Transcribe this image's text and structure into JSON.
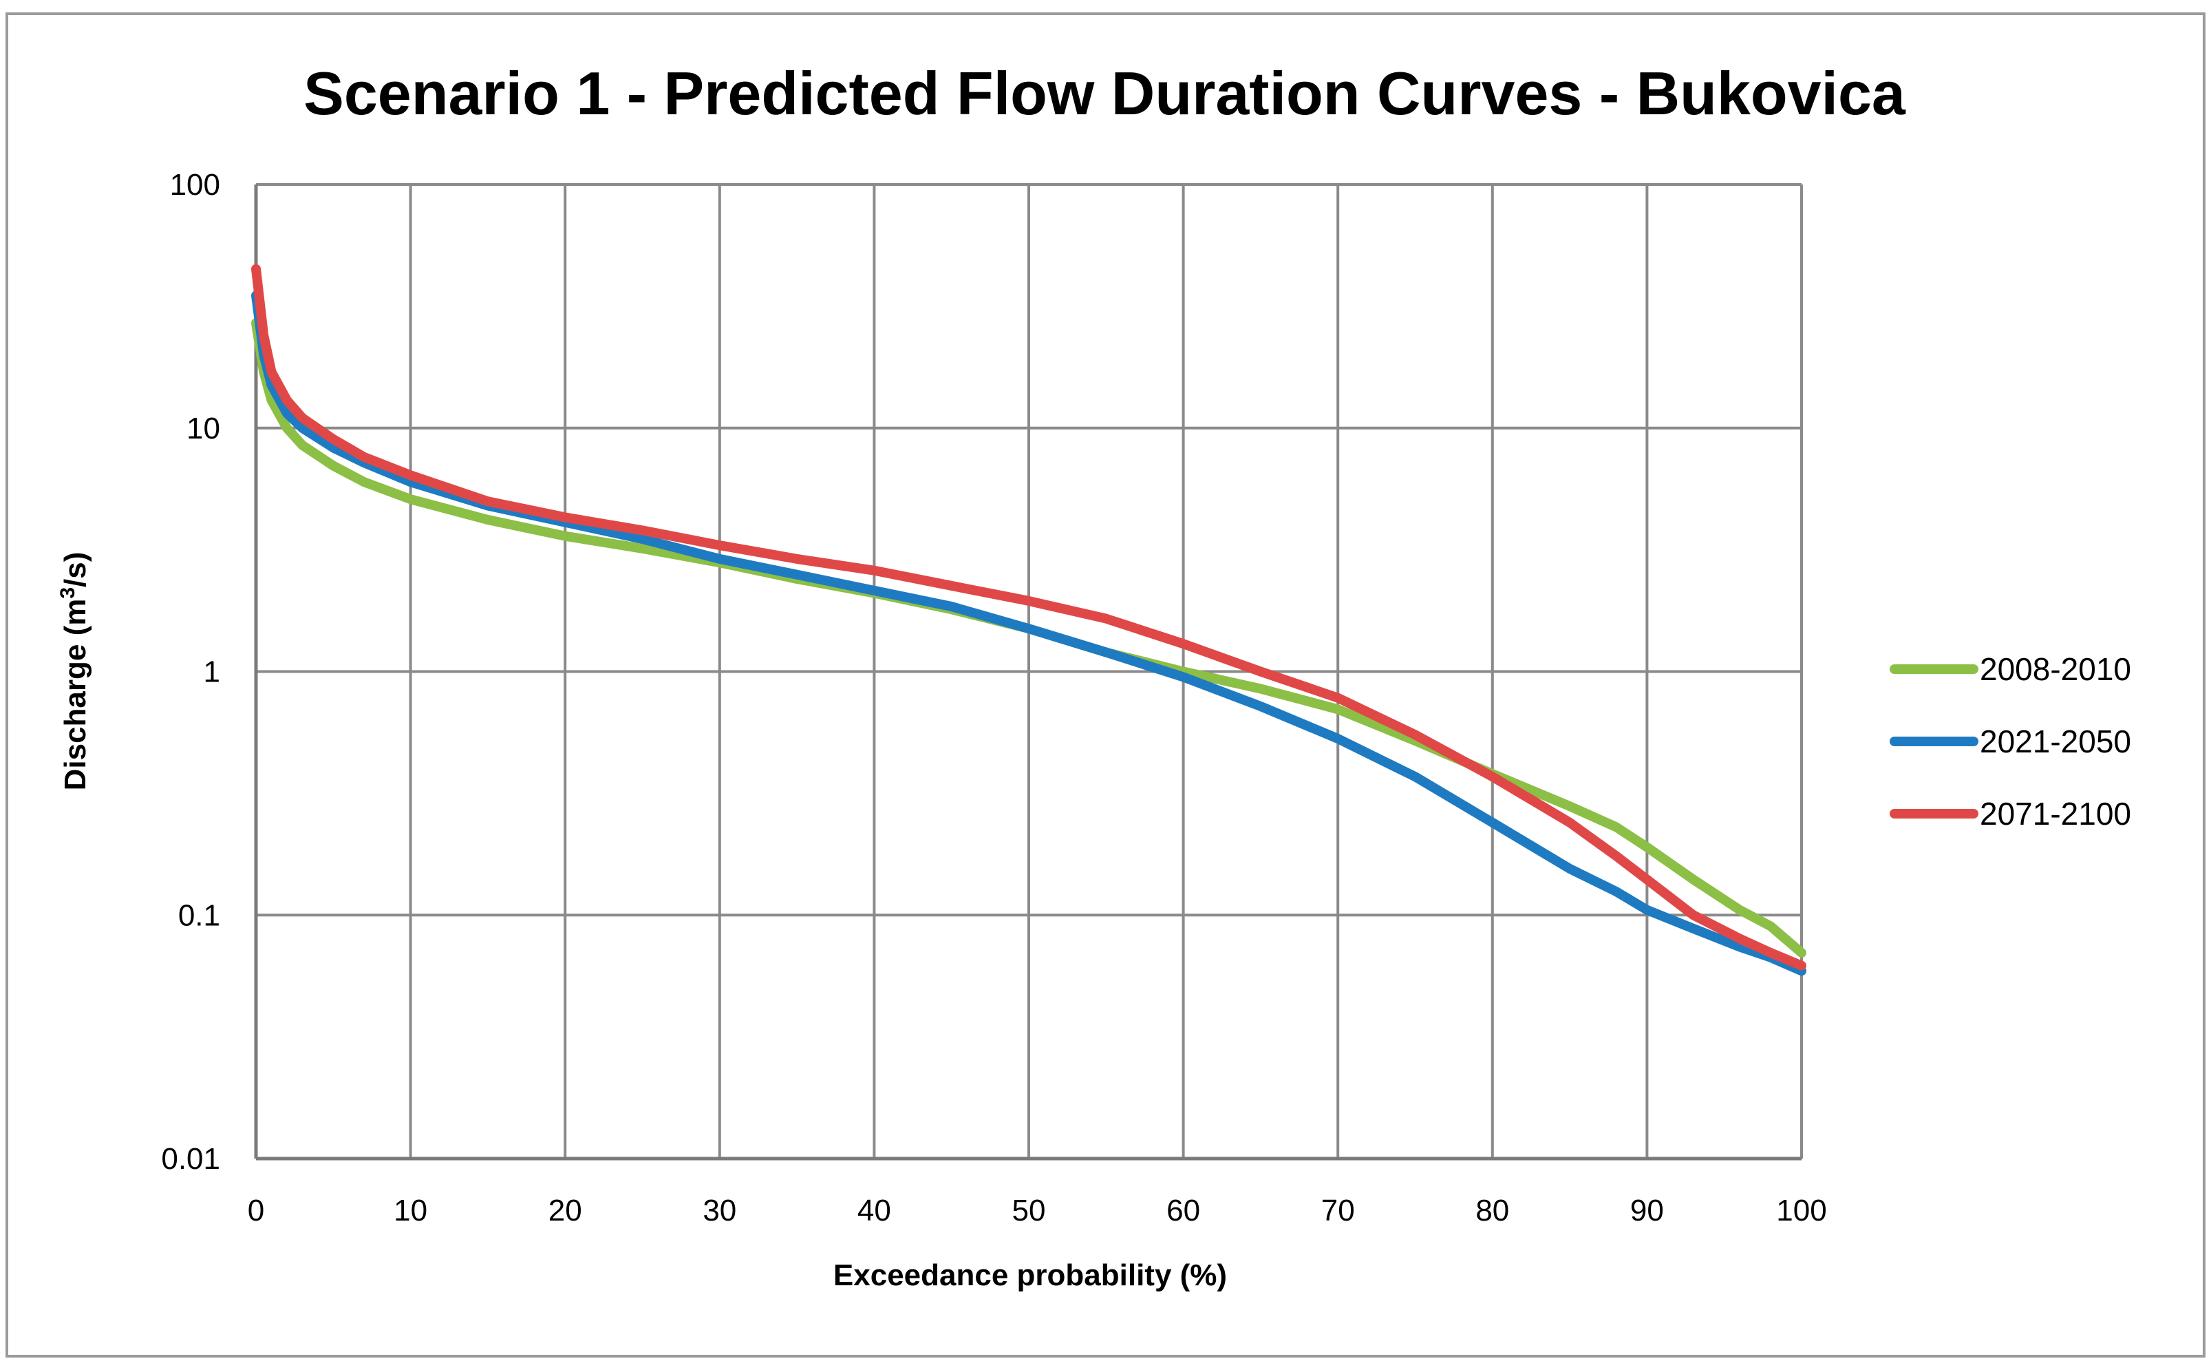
{
  "chart_data": {
    "type": "line",
    "title": "Scenario 1 - Predicted Flow Duration Curves - Bukovica",
    "xlabel": "Exceedance probability (%)",
    "ylabel_prefix": "Discharge (m",
    "ylabel_sup": "3",
    "ylabel_suffix": "/s)",
    "xlim": [
      0,
      100
    ],
    "ylim": [
      0.01,
      100
    ],
    "yscale": "log",
    "grid": true,
    "legend_position": "right",
    "x_ticks": [
      "0",
      "10",
      "20",
      "30",
      "40",
      "50",
      "60",
      "70",
      "80",
      "90",
      "100"
    ],
    "y_ticks": [
      {
        "value": 100,
        "label": "100"
      },
      {
        "value": 10,
        "label": "10"
      },
      {
        "value": 1,
        "label": "1"
      },
      {
        "value": 0.1,
        "label": "0.1"
      },
      {
        "value": 0.01,
        "label": "0.01"
      }
    ],
    "series": [
      {
        "name": "2008-2010",
        "color": "#8cbf45",
        "x": [
          0,
          0.5,
          1,
          2,
          3,
          5,
          7,
          10,
          15,
          20,
          25,
          30,
          35,
          40,
          45,
          50,
          55,
          60,
          65,
          70,
          75,
          80,
          85,
          88,
          90,
          93,
          96,
          98,
          100
        ],
        "y": [
          27,
          17,
          13,
          10,
          8.5,
          7,
          6,
          5.1,
          4.2,
          3.6,
          3.2,
          2.8,
          2.4,
          2.1,
          1.8,
          1.5,
          1.2,
          1.0,
          0.85,
          0.7,
          0.52,
          0.38,
          0.28,
          0.23,
          0.19,
          0.14,
          0.105,
          0.09,
          0.07
        ]
      },
      {
        "name": "2021-2050",
        "color": "#1f7bc1",
        "x": [
          0,
          0.5,
          1,
          2,
          3,
          5,
          7,
          10,
          15,
          20,
          25,
          30,
          35,
          40,
          45,
          50,
          55,
          60,
          65,
          70,
          75,
          80,
          85,
          88,
          90,
          93,
          96,
          98,
          100
        ],
        "y": [
          35,
          20,
          15,
          11.5,
          10,
          8.3,
          7.2,
          6.0,
          4.8,
          4.1,
          3.5,
          2.9,
          2.5,
          2.15,
          1.85,
          1.5,
          1.2,
          0.95,
          0.72,
          0.53,
          0.37,
          0.24,
          0.155,
          0.125,
          0.105,
          0.088,
          0.074,
          0.067,
          0.059
        ]
      },
      {
        "name": "2071-2100",
        "color": "#e04848",
        "x": [
          0,
          0.5,
          1,
          2,
          3,
          5,
          7,
          10,
          15,
          20,
          25,
          30,
          35,
          40,
          45,
          50,
          55,
          60,
          65,
          70,
          75,
          80,
          85,
          88,
          90,
          93,
          96,
          98,
          100
        ],
        "y": [
          45,
          24,
          17,
          13,
          11,
          9.0,
          7.6,
          6.4,
          5.0,
          4.3,
          3.8,
          3.3,
          2.9,
          2.6,
          2.25,
          1.95,
          1.65,
          1.3,
          1.0,
          0.78,
          0.55,
          0.37,
          0.24,
          0.175,
          0.14,
          0.1,
          0.08,
          0.07,
          0.062
        ]
      }
    ]
  }
}
